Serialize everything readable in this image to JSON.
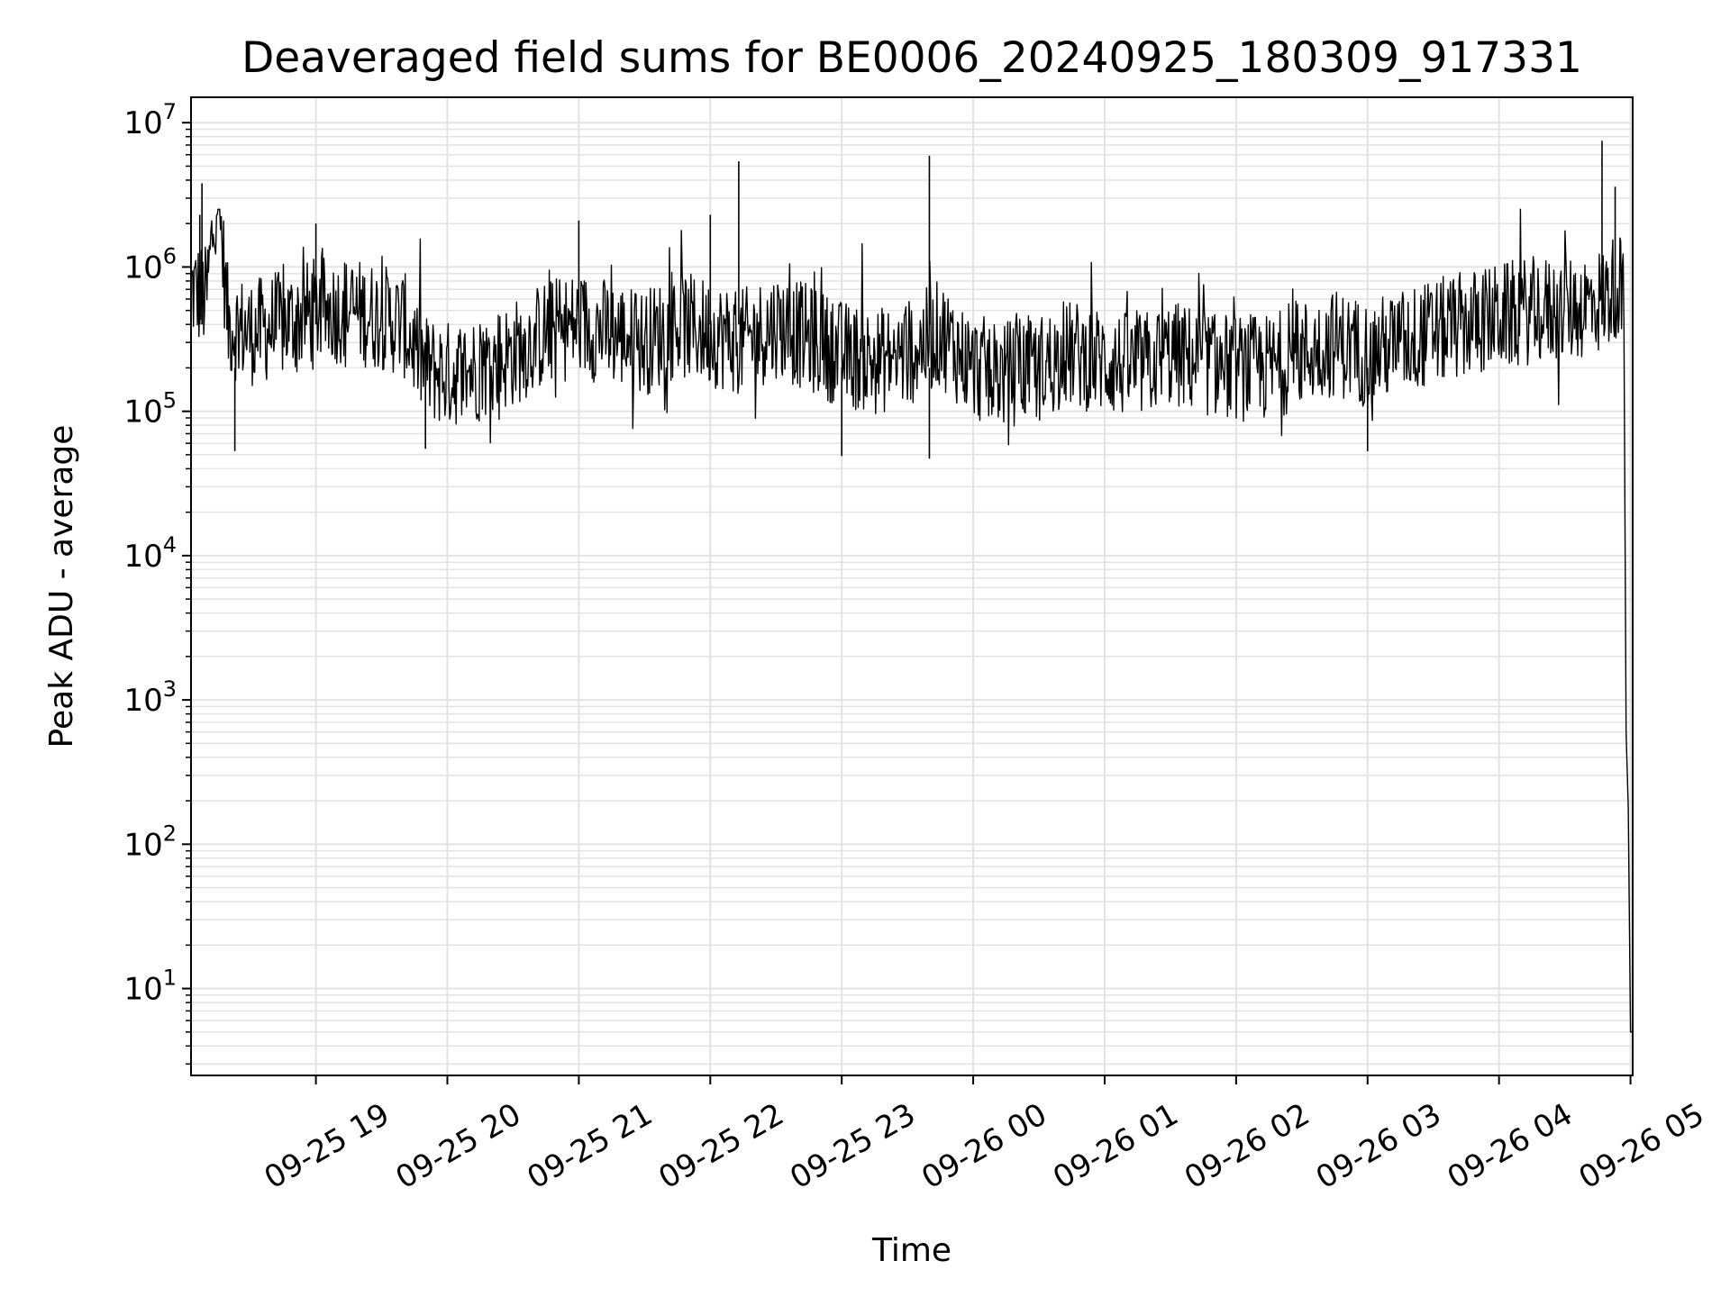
{
  "chart_data": {
    "type": "line",
    "title": "Deaveraged field sums for BE0006_20240925_180309_917331",
    "xlabel": "Time",
    "ylabel": "Peak ADU - average",
    "x_axis": "datetime",
    "y_scale": "log",
    "xlim": [
      "2024-09-25 18:03",
      "2024-09-26 05:01"
    ],
    "ylim": [
      2.5,
      15000000
    ],
    "grid": true,
    "line_color": "#000000",
    "grid_color": "#e3e3e3",
    "x_ticks": [
      {
        "value": "2024-09-25 19:00",
        "label": "09-25 19"
      },
      {
        "value": "2024-09-25 20:00",
        "label": "09-25 20"
      },
      {
        "value": "2024-09-25 21:00",
        "label": "09-25 21"
      },
      {
        "value": "2024-09-25 22:00",
        "label": "09-25 22"
      },
      {
        "value": "2024-09-25 23:00",
        "label": "09-25 23"
      },
      {
        "value": "2024-09-26 00:00",
        "label": "09-26 00"
      },
      {
        "value": "2024-09-26 01:00",
        "label": "09-26 01"
      },
      {
        "value": "2024-09-26 02:00",
        "label": "09-26 02"
      },
      {
        "value": "2024-09-26 03:00",
        "label": "09-26 03"
      },
      {
        "value": "2024-09-26 04:00",
        "label": "09-26 04"
      },
      {
        "value": "2024-09-26 05:00",
        "label": "09-26 05"
      }
    ],
    "y_ticks": [
      {
        "value": 10,
        "base": "10",
        "exp": "1"
      },
      {
        "value": 100,
        "base": "10",
        "exp": "2"
      },
      {
        "value": 1000,
        "base": "10",
        "exp": "3"
      },
      {
        "value": 10000,
        "base": "10",
        "exp": "4"
      },
      {
        "value": 100000,
        "base": "10",
        "exp": "5"
      },
      {
        "value": 1000000,
        "base": "10",
        "exp": "6"
      },
      {
        "value": 10000000,
        "base": "10",
        "exp": "7"
      }
    ],
    "series": [
      {
        "x": [
          "2024-09-25 18:03",
          "2024-09-25 18:10",
          "2024-09-25 18:15",
          "2024-09-25 18:20",
          "2024-09-25 18:30",
          "2024-09-25 18:45",
          "2024-09-25 19:00",
          "2024-09-25 19:15",
          "2024-09-25 19:30",
          "2024-09-25 19:40",
          "2024-09-25 19:50",
          "2024-09-25 20:00",
          "2024-09-25 20:15",
          "2024-09-25 20:30",
          "2024-09-25 20:45",
          "2024-09-25 21:00",
          "2024-09-25 21:15",
          "2024-09-25 21:30",
          "2024-09-25 21:45",
          "2024-09-25 22:00",
          "2024-09-25 22:15",
          "2024-09-25 22:30",
          "2024-09-25 22:45",
          "2024-09-25 23:00",
          "2024-09-25 23:15",
          "2024-09-25 23:30",
          "2024-09-25 23:45",
          "2024-09-26 00:00",
          "2024-09-26 00:15",
          "2024-09-26 00:30",
          "2024-09-26 00:45",
          "2024-09-26 01:00",
          "2024-09-26 01:15",
          "2024-09-26 01:30",
          "2024-09-26 01:45",
          "2024-09-26 02:00",
          "2024-09-26 02:15",
          "2024-09-26 02:30",
          "2024-09-26 02:45",
          "2024-09-26 03:00",
          "2024-09-26 03:15",
          "2024-09-26 03:30",
          "2024-09-26 03:45",
          "2024-09-26 04:00",
          "2024-09-26 04:15",
          "2024-09-26 04:30",
          "2024-09-26 04:40",
          "2024-09-26 04:48",
          "2024-09-26 04:55",
          "2024-09-26 04:57",
          "2024-09-26 04:58",
          "2024-09-26 05:00",
          "2024-09-26 05:01"
        ],
        "y": [
          700000,
          600000,
          3800000,
          400000,
          350000,
          400000,
          500000,
          500000,
          450000,
          400000,
          200000,
          180000,
          200000,
          250000,
          350000,
          400000,
          350000,
          300000,
          400000,
          350000,
          300000,
          400000,
          320000,
          250000,
          220000,
          250000,
          350000,
          200000,
          180000,
          200000,
          250000,
          220000,
          200000,
          250000,
          220000,
          200000,
          200000,
          250000,
          300000,
          250000,
          300000,
          350000,
          400000,
          450000,
          500000,
          500000,
          550000,
          600000,
          800000,
          500000,
          600,
          5,
          5
        ]
      }
    ],
    "spikes": [
      {
        "x": "2024-09-25 18:08",
        "y": 3800000
      },
      {
        "x": "2024-09-25 18:07",
        "y": 2300000
      },
      {
        "x": "2024-09-25 19:00",
        "y": 2000000
      },
      {
        "x": "2024-09-25 21:00",
        "y": 2100000
      },
      {
        "x": "2024-09-25 22:00",
        "y": 2300000
      },
      {
        "x": "2024-09-25 22:13",
        "y": 5400000
      },
      {
        "x": "2024-09-25 23:40",
        "y": 5900000
      },
      {
        "x": "2024-09-26 04:47",
        "y": 7500000
      },
      {
        "x": "2024-09-26 04:53",
        "y": 3600000
      }
    ],
    "dips": [
      {
        "x": "2024-09-25 18:23",
        "y": 53000
      },
      {
        "x": "2024-09-25 19:50",
        "y": 55000
      },
      {
        "x": "2024-09-25 23:40",
        "y": 47000
      },
      {
        "x": "2024-09-25 23:00",
        "y": 49000
      },
      {
        "x": "2024-09-26 03:00",
        "y": 53000
      }
    ]
  }
}
